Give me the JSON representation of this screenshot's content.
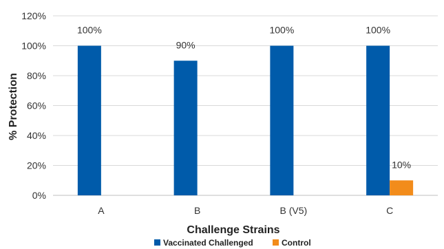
{
  "chart_data": {
    "type": "bar",
    "title": "",
    "xlabel": "Challenge Strains",
    "ylabel": "% Protection",
    "categories": [
      "A",
      "B",
      "B (V5)",
      "C"
    ],
    "series": [
      {
        "name": "Vaccinated Challenged",
        "values": [
          100,
          90,
          100,
          100
        ],
        "labels": [
          "100%",
          "90%",
          "100%",
          "100%"
        ],
        "color": "#005BAA"
      },
      {
        "name": "Control",
        "values": [
          0,
          0,
          0,
          10
        ],
        "labels": [
          "",
          "",
          "",
          "10%"
        ],
        "color": "#F28C1B"
      }
    ],
    "ylim": [
      0,
      120
    ],
    "yticks": [
      0,
      20,
      40,
      60,
      80,
      100,
      120
    ],
    "ytick_labels": [
      "0%",
      "20%",
      "40%",
      "60%",
      "80%",
      "100%",
      "120%"
    ],
    "grid": true,
    "legend": "bottom"
  }
}
